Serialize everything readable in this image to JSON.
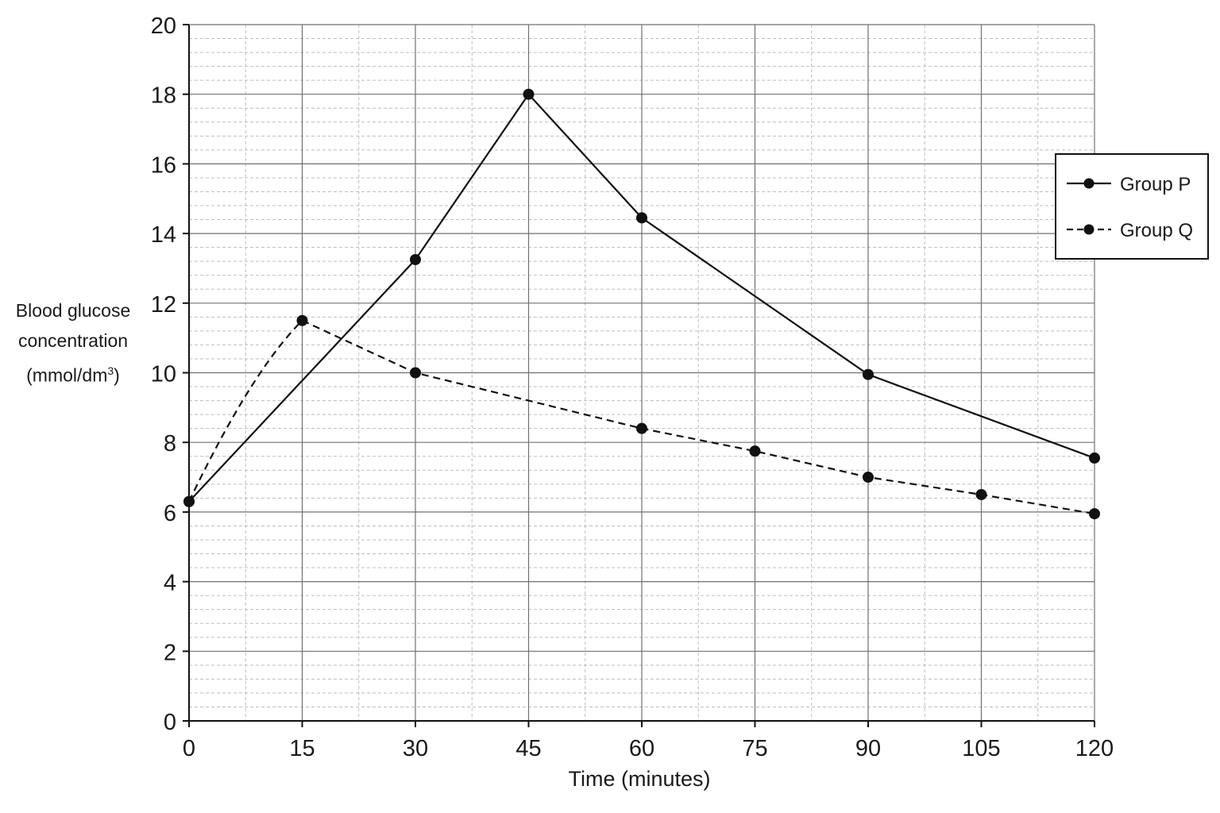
{
  "chart_data": {
    "type": "line",
    "xlabel": "Time (minutes)",
    "ylabel_lines": [
      "Blood glucose",
      "concentration",
      "(mmol/dm"
    ],
    "ylabel_unit_sup": "3",
    "ylabel_close": ")",
    "xlim": [
      0,
      120
    ],
    "ylim": [
      0,
      20
    ],
    "x_ticks": [
      0,
      15,
      30,
      45,
      60,
      75,
      90,
      105,
      120
    ],
    "y_ticks": [
      0,
      2,
      4,
      6,
      8,
      10,
      12,
      14,
      16,
      18,
      20
    ],
    "grid": true,
    "legend_position": "top-right",
    "series": [
      {
        "name": "Group P",
        "style": "solid",
        "x": [
          0,
          30,
          45,
          60,
          90,
          120
        ],
        "y": [
          6.3,
          13.25,
          18.0,
          14.45,
          9.95,
          7.55
        ]
      },
      {
        "name": "Group Q",
        "style": "dashed",
        "x": [
          0,
          15,
          30,
          60,
          75,
          90,
          105,
          120
        ],
        "y": [
          6.3,
          11.5,
          10.0,
          8.4,
          7.75,
          7.0,
          6.5,
          5.95
        ]
      }
    ],
    "colors": {
      "line": "#111111",
      "major_grid": "#707070",
      "minor_grid": "#bdbdbd"
    }
  }
}
